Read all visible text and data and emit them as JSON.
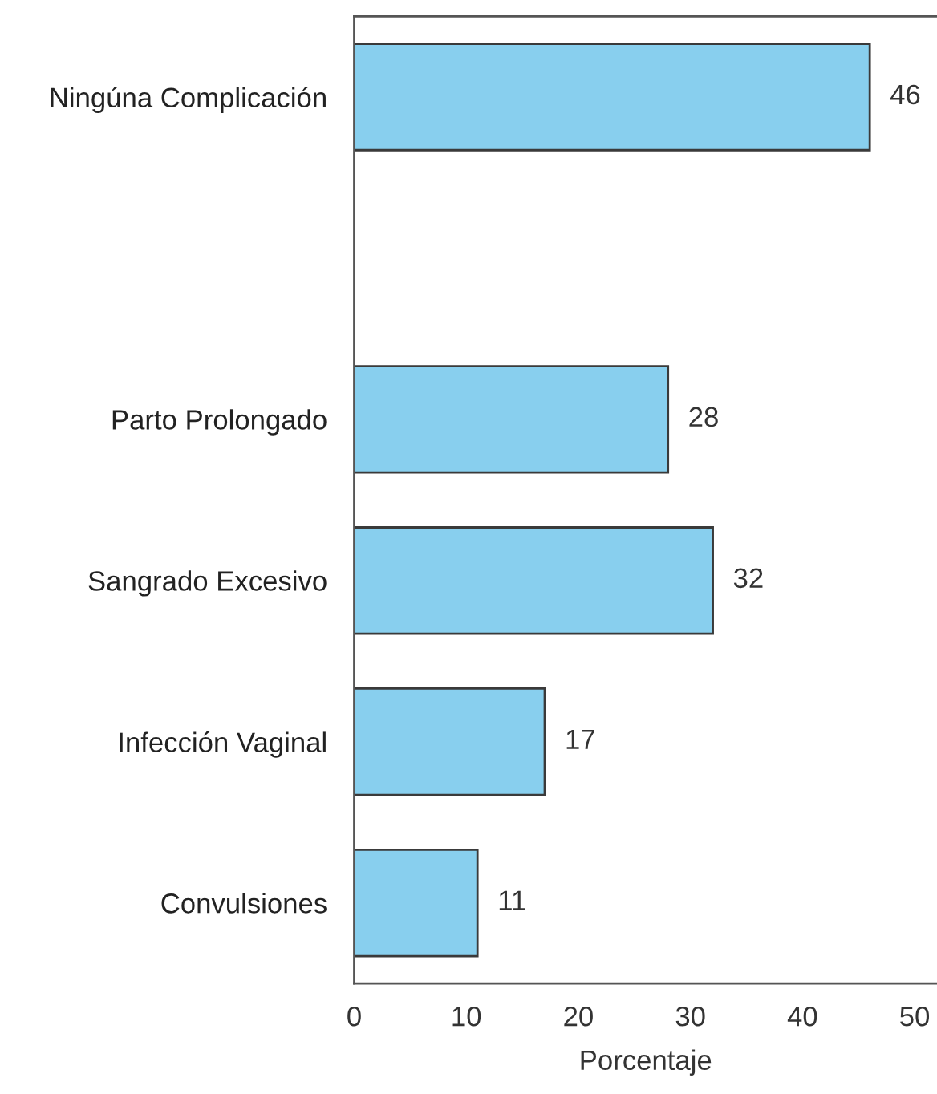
{
  "chart_data": {
    "type": "bar",
    "orientation": "horizontal",
    "categories": [
      "Ningúna Complicación",
      null,
      "Parto Prolongado",
      "Sangrado Excesivo",
      "Infección Vaginal",
      "Convulsiones"
    ],
    "values": [
      46,
      null,
      28,
      32,
      17,
      11
    ],
    "color": "#88cfee",
    "xlabel": "Porcentaje",
    "xlim": [
      0,
      52
    ],
    "xticks": [
      0,
      10,
      20,
      30,
      40,
      50
    ],
    "data_labels": true
  }
}
